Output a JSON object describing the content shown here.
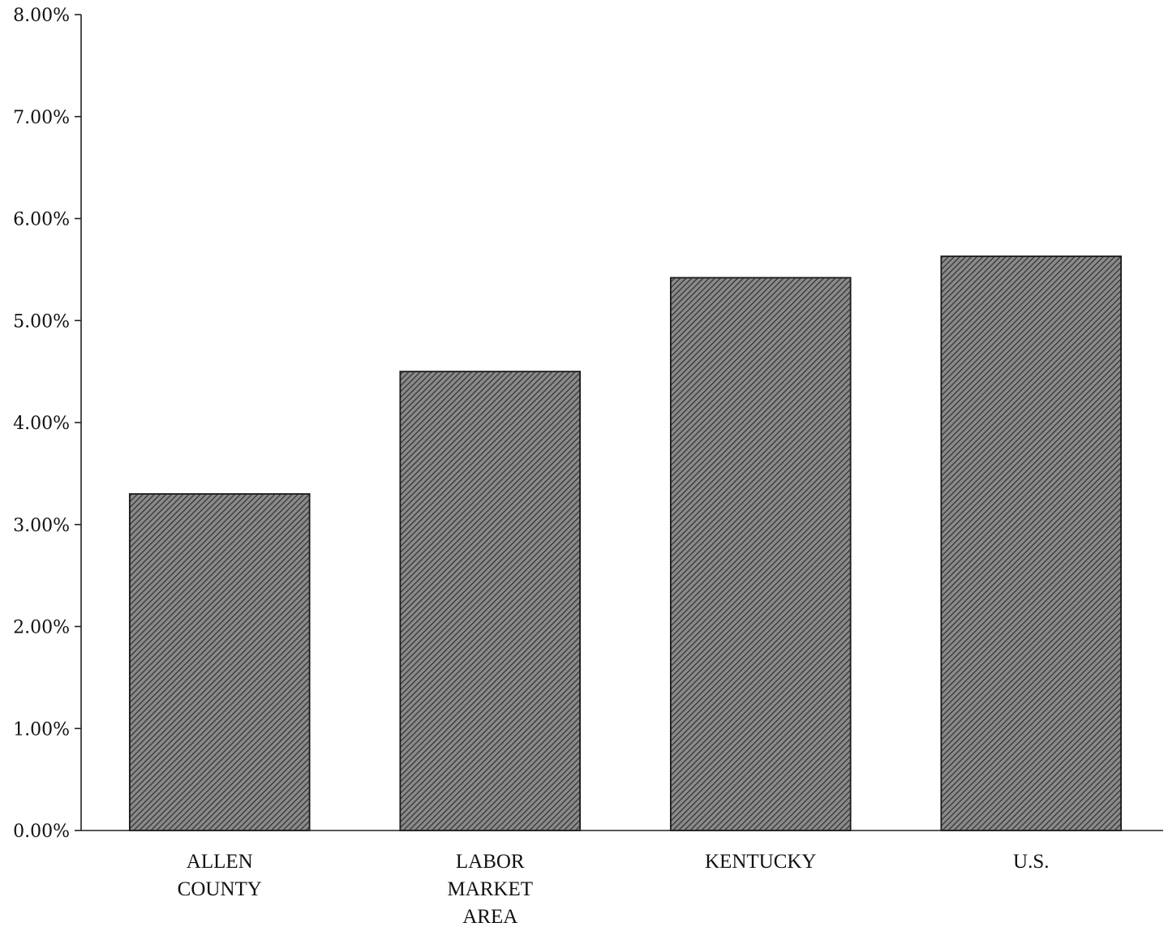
{
  "chart_data": {
    "type": "bar",
    "categories": [
      [
        "ALLEN",
        "COUNTY"
      ],
      [
        "LABOR",
        "MARKET",
        "AREA"
      ],
      [
        "KENTUCKY"
      ],
      [
        "U.S."
      ]
    ],
    "values": [
      3.3,
      4.5,
      5.42,
      5.63
    ],
    "y_unit": "%",
    "ylim": [
      0,
      8
    ],
    "yticks": [
      "0.00%",
      "1.00%",
      "2.00%",
      "3.00%",
      "4.00%",
      "5.00%",
      "6.00%",
      "7.00%",
      "8.00%"
    ],
    "grid": false,
    "bar_fill": "hatched-gray",
    "colors": {
      "bar_base": "#8a8a8a",
      "hatch": "#2e2e2e",
      "axis": "#222222"
    }
  }
}
